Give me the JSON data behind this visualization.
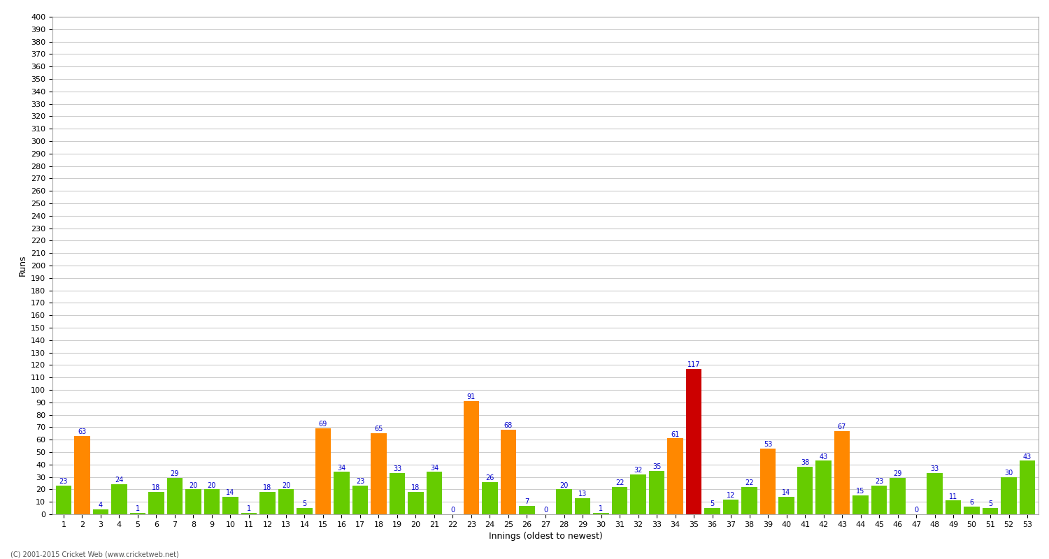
{
  "title": "",
  "xlabel": "Innings (oldest to newest)",
  "ylabel": "Runs",
  "copyright": "(C) 2001-2015 Cricket Web (www.cricketweb.net)",
  "ylim": [
    0,
    400
  ],
  "yticks": [
    0,
    10,
    20,
    30,
    40,
    50,
    60,
    70,
    80,
    90,
    100,
    110,
    120,
    130,
    140,
    150,
    160,
    170,
    180,
    190,
    200,
    210,
    220,
    230,
    240,
    250,
    260,
    270,
    280,
    290,
    300,
    310,
    320,
    330,
    340,
    350,
    360,
    370,
    380,
    390,
    400
  ],
  "innings": [
    1,
    2,
    3,
    4,
    5,
    6,
    7,
    8,
    9,
    10,
    11,
    12,
    13,
    14,
    15,
    16,
    17,
    18,
    19,
    20,
    21,
    22,
    23,
    24,
    25,
    26,
    27,
    28,
    29,
    30,
    31,
    32,
    33,
    34,
    35,
    36,
    37,
    38,
    39,
    40,
    41,
    42,
    43,
    44,
    45,
    46,
    47,
    48,
    49,
    50,
    51,
    52,
    53
  ],
  "scores": [
    23,
    63,
    4,
    24,
    1,
    18,
    29,
    20,
    20,
    14,
    1,
    18,
    20,
    5,
    69,
    34,
    23,
    65,
    33,
    18,
    34,
    0,
    91,
    26,
    68,
    7,
    0,
    20,
    13,
    1,
    22,
    32,
    35,
    61,
    117,
    5,
    12,
    22,
    53,
    14,
    38,
    43,
    67,
    15,
    23,
    29,
    0,
    33,
    11,
    6,
    5,
    30,
    43
  ],
  "color_threshold_50": 50,
  "color_threshold_100": 100,
  "color_green": "#66cc00",
  "color_orange": "#ff8800",
  "color_red": "#cc0000",
  "color_label": "#0000cc",
  "background_color": "#ffffff",
  "plot_bg_color": "#f8f8f8",
  "grid_color": "#cccccc",
  "label_fontsize": 9,
  "tick_fontsize": 8,
  "bar_label_fontsize": 7
}
